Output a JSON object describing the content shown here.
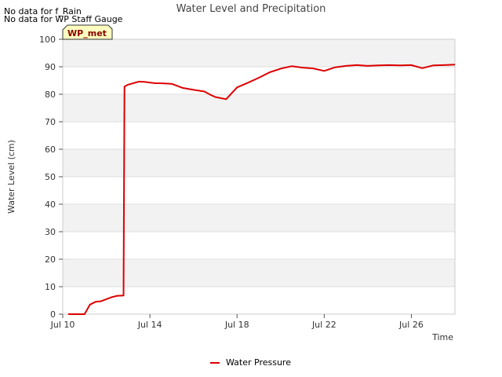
{
  "notes": [
    "No data for f_Rain",
    "No data for WP Staff Gauge"
  ],
  "badge": "WP_met",
  "chart_data": {
    "type": "line",
    "title": "Water Level and Precipitation",
    "xlabel": "Time",
    "ylabel": "Water Level (cm)",
    "ylim": [
      0,
      100
    ],
    "yticks": [
      0,
      10,
      20,
      30,
      40,
      50,
      60,
      70,
      80,
      90,
      100
    ],
    "xlim": [
      "Jul 10",
      "Jul 28"
    ],
    "xticks": [
      "Jul 10",
      "Jul 14",
      "Jul 18",
      "Jul 22",
      "Jul 26"
    ],
    "grid": true,
    "legend_position": "bottom",
    "series": [
      {
        "name": "Water Pressure",
        "color": "#dd0000",
        "x": [
          "2023-07-10 06:00",
          "2023-07-11 00:00",
          "2023-07-11 06:00",
          "2023-07-11 12:00",
          "2023-07-11 18:00",
          "2023-07-12 06:00",
          "2023-07-12 12:00",
          "2023-07-12 19:00",
          "2023-07-12 20:00",
          "2023-07-13 00:00",
          "2023-07-13 12:00",
          "2023-07-13 18:00",
          "2023-07-14 06:00",
          "2023-07-14 12:00",
          "2023-07-15 00:00",
          "2023-07-15 12:00",
          "2023-07-16 00:00",
          "2023-07-16 12:00",
          "2023-07-16 18:00",
          "2023-07-17 00:00",
          "2023-07-17 12:00",
          "2023-07-18 00:00",
          "2023-07-18 12:00",
          "2023-07-19 00:00",
          "2023-07-19 12:00",
          "2023-07-20 00:00",
          "2023-07-20 12:00",
          "2023-07-21 00:00",
          "2023-07-21 12:00",
          "2023-07-22 00:00",
          "2023-07-22 12:00",
          "2023-07-23 00:00",
          "2023-07-23 12:00",
          "2023-07-24 00:00",
          "2023-07-24 12:00",
          "2023-07-25 00:00",
          "2023-07-25 12:00",
          "2023-07-26 00:00",
          "2023-07-26 12:00",
          "2023-07-27 00:00",
          "2023-07-27 12:00",
          "2023-07-28 00:00"
        ],
        "values": [
          0,
          0,
          3.5,
          4.5,
          4.7,
          6.2,
          6.7,
          6.8,
          82.8,
          83.5,
          84.6,
          84.5,
          84.0,
          84.0,
          83.8,
          82.3,
          81.6,
          81.0,
          79.9,
          79.0,
          78.2,
          82.5,
          84.2,
          86.0,
          88.0,
          89.3,
          90.2,
          89.7,
          89.4,
          88.5,
          89.8,
          90.3,
          90.6,
          90.3,
          90.5,
          90.6,
          90.5,
          90.6,
          89.5,
          90.5,
          90.6,
          90.8
        ]
      }
    ]
  }
}
